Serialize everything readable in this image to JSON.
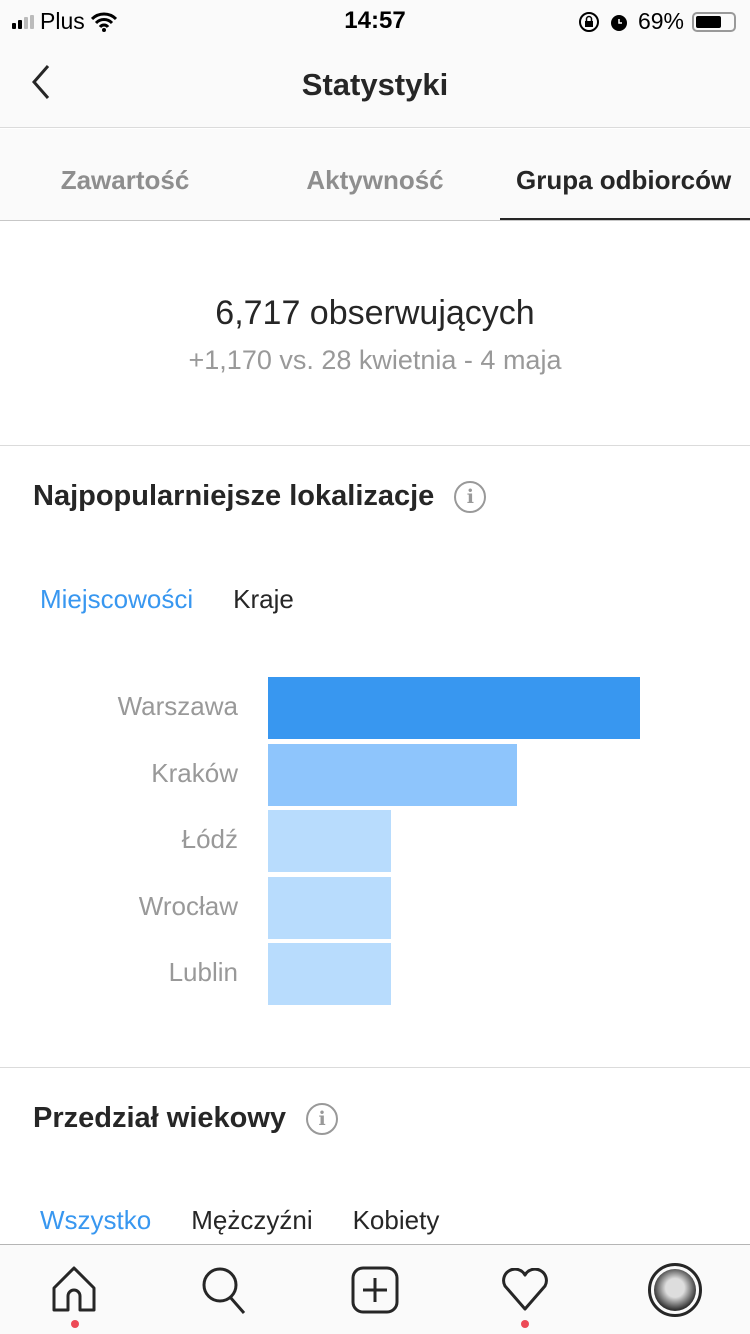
{
  "status": {
    "carrier": "Plus",
    "time": "14:57",
    "battery": "69%",
    "battery_level": 0.69
  },
  "header": {
    "title": "Statystyki"
  },
  "tabs": [
    {
      "label": "Zawartość"
    },
    {
      "label": "Aktywność"
    },
    {
      "label": "Grupa odbiorców",
      "active": true
    }
  ],
  "summary": {
    "followers": "6,717 obserwujących",
    "change": "+1,170 vs. 28 kwietnia - 4 maja"
  },
  "locations": {
    "title": "Najpopularniejsze lokalizacje",
    "subtabs": [
      {
        "label": "Miejscowości",
        "active": true
      },
      {
        "label": "Kraje"
      }
    ]
  },
  "chart_data": {
    "type": "bar",
    "orientation": "horizontal",
    "categories": [
      "Warszawa",
      "Kraków",
      "Łódź",
      "Wrocław",
      "Lublin"
    ],
    "values": [
      100,
      67,
      33,
      33,
      33
    ],
    "colors": [
      "#3897f0",
      "#8ec5fc",
      "#b8dcfd",
      "#b8dcfd",
      "#b8dcfd"
    ]
  },
  "age": {
    "title": "Przedział wiekowy",
    "subtabs": [
      {
        "label": "Wszystko",
        "active": true
      },
      {
        "label": "Mężczyźni"
      },
      {
        "label": "Kobiety"
      }
    ]
  },
  "colors": {
    "accent": "#3897f0",
    "notification": "#ed4956"
  }
}
